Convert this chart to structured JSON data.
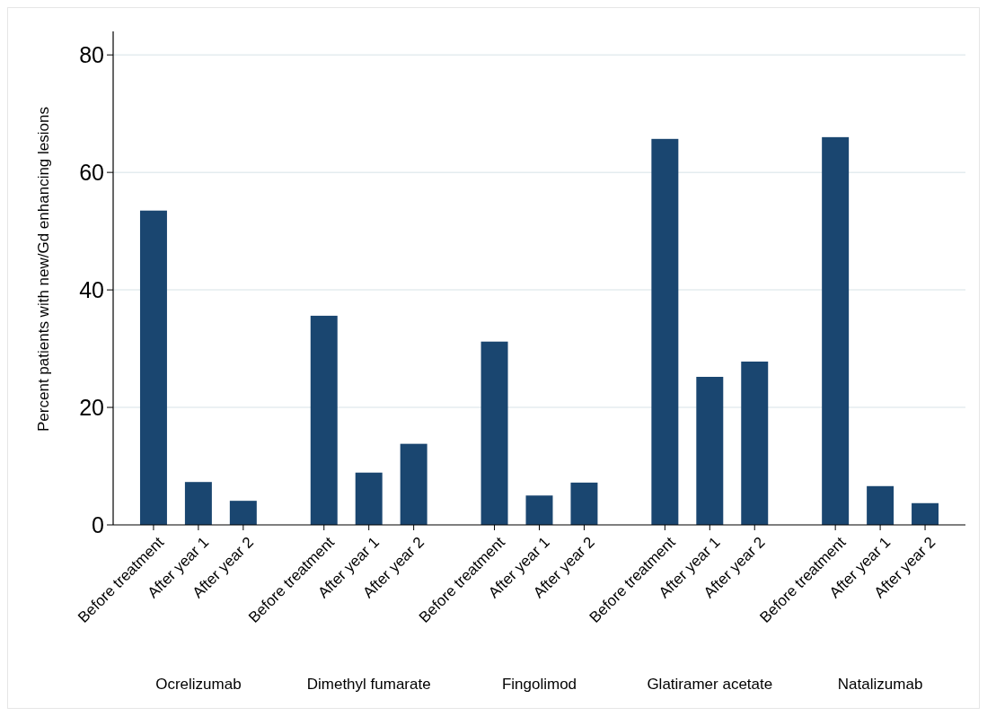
{
  "chart_data": {
    "type": "bar",
    "ylabel": "Percent patients with new/Gd enhancing lesions",
    "categories": [
      "Before treatment",
      "After year 1",
      "After year 2",
      "Before treatment",
      "After year 1",
      "After year 2",
      "Before treatment",
      "After year 1",
      "After year 2",
      "Before treatment",
      "After year 1",
      "After year 2",
      "Before treatment",
      "After year 1",
      "After year 2"
    ],
    "values": [
      53.5,
      7.3,
      4.1,
      35.6,
      8.9,
      13.8,
      31.2,
      5.0,
      7.2,
      65.7,
      25.2,
      27.8,
      66.0,
      6.6,
      3.7
    ],
    "color": "#1a4670",
    "ylim": [
      0,
      84
    ],
    "yticks": [
      0,
      20,
      40,
      60,
      80
    ],
    "grid": "y",
    "annotations": [
      "Ocrelizumab",
      "Dimethyl fumarate",
      "Fingolimod",
      "Glatiramer acetate",
      "Natalizumab"
    ]
  }
}
